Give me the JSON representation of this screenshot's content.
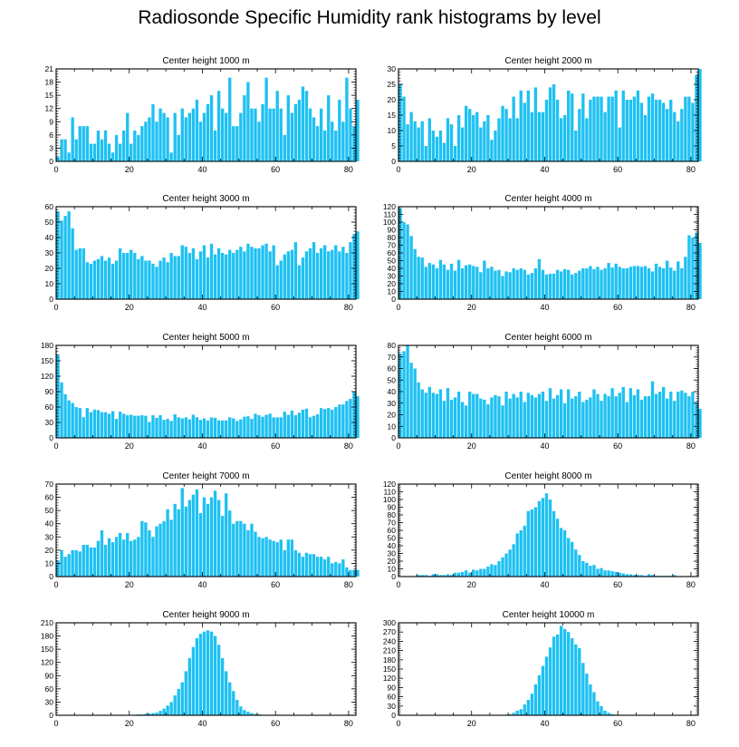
{
  "title": "Radiosonde Specific Humidity rank histograms by level",
  "colors": {
    "bar": "#1ec1f2",
    "axis": "#000000"
  },
  "chart_data": [
    {
      "type": "bar",
      "title": "Center height 1000 m",
      "xlim": [
        0,
        82
      ],
      "ylim": [
        0,
        21
      ],
      "xticks": [
        0,
        20,
        40,
        60,
        80
      ],
      "yticks": [
        0,
        3,
        6,
        9,
        12,
        15,
        18,
        21
      ],
      "values": [
        1,
        5,
        5,
        2,
        10,
        5,
        8,
        8,
        8,
        4,
        4,
        7,
        5,
        7,
        4,
        2,
        6,
        4,
        7,
        11,
        4,
        7,
        6,
        8,
        9,
        10,
        13,
        9,
        12,
        11,
        10,
        2,
        11,
        6,
        12,
        10,
        11,
        12,
        14,
        9,
        11,
        13,
        15,
        7,
        16,
        12,
        11,
        19,
        8,
        8,
        11,
        15,
        18,
        12,
        12,
        9,
        13,
        19,
        12,
        12,
        16,
        12,
        6,
        15,
        11,
        13,
        14,
        17,
        16,
        12,
        10,
        8,
        12,
        7,
        15,
        9,
        7,
        14,
        9,
        19,
        12,
        8,
        14
      ]
    },
    {
      "type": "bar",
      "title": "Center height 2000 m",
      "xlim": [
        0,
        82
      ],
      "ylim": [
        0,
        30
      ],
      "xticks": [
        0,
        20,
        40,
        60,
        80
      ],
      "yticks": [
        0,
        5,
        10,
        15,
        20,
        25,
        30
      ],
      "values": [
        25,
        21,
        12,
        16,
        13,
        11,
        13,
        5,
        14,
        10,
        8,
        10,
        6,
        14,
        12,
        5,
        15,
        11,
        18,
        17,
        15,
        16,
        11,
        13,
        15,
        7,
        10,
        14,
        18,
        17,
        14,
        21,
        14,
        23,
        19,
        23,
        16,
        24,
        16,
        16,
        20,
        24,
        25,
        20,
        14,
        15,
        23,
        22,
        10,
        17,
        22,
        14,
        20,
        21,
        21,
        21,
        16,
        21,
        21,
        23,
        11,
        23,
        20,
        20,
        21,
        23,
        19,
        15,
        21,
        22,
        20,
        20,
        19,
        17,
        20,
        16,
        13,
        17,
        21,
        21,
        19,
        28,
        30
      ]
    },
    {
      "type": "bar",
      "title": "Center height 3000 m",
      "xlim": [
        0,
        82
      ],
      "ylim": [
        0,
        60
      ],
      "xticks": [
        0,
        20,
        40,
        60,
        80
      ],
      "yticks": [
        0,
        10,
        20,
        30,
        40,
        50,
        60
      ],
      "values": [
        57,
        51,
        54,
        57,
        46,
        32,
        33,
        33,
        24,
        23,
        25,
        26,
        28,
        25,
        27,
        23,
        25,
        33,
        30,
        30,
        32,
        30,
        26,
        28,
        25,
        25,
        23,
        21,
        25,
        27,
        24,
        30,
        28,
        28,
        35,
        34,
        30,
        33,
        26,
        31,
        35,
        27,
        36,
        29,
        33,
        30,
        29,
        32,
        30,
        32,
        34,
        31,
        36,
        34,
        33,
        33,
        35,
        36,
        31,
        35,
        22,
        25,
        29,
        31,
        32,
        37,
        22,
        27,
        31,
        33,
        37,
        30,
        33,
        35,
        31,
        32,
        35,
        31,
        34,
        30,
        37,
        42,
        44
      ]
    },
    {
      "type": "bar",
      "title": "Center height 4000 m",
      "xlim": [
        0,
        82
      ],
      "ylim": [
        0,
        120
      ],
      "xticks": [
        0,
        20,
        40,
        60,
        80
      ],
      "yticks": [
        0,
        10,
        20,
        30,
        40,
        50,
        60,
        70,
        80,
        90,
        100,
        110,
        120
      ],
      "values": [
        118,
        100,
        97,
        82,
        65,
        55,
        54,
        42,
        47,
        45,
        40,
        51,
        45,
        38,
        46,
        37,
        51,
        40,
        44,
        45,
        43,
        42,
        35,
        50,
        40,
        42,
        37,
        38,
        30,
        36,
        35,
        40,
        38,
        40,
        38,
        32,
        34,
        40,
        52,
        38,
        32,
        33,
        33,
        38,
        36,
        39,
        38,
        32,
        34,
        37,
        40,
        40,
        43,
        39,
        42,
        38,
        40,
        47,
        41,
        46,
        42,
        40,
        40,
        42,
        43,
        43,
        42,
        43,
        40,
        36,
        46,
        42,
        40,
        50,
        41,
        37,
        49,
        40,
        55,
        83,
        80,
        86,
        73
      ]
    },
    {
      "type": "bar",
      "title": "Center height 5000 m",
      "xlim": [
        0,
        82
      ],
      "ylim": [
        0,
        180
      ],
      "xticks": [
        0,
        20,
        40,
        60,
        80
      ],
      "yticks": [
        0,
        30,
        60,
        90,
        120,
        150,
        180
      ],
      "values": [
        162,
        108,
        85,
        73,
        68,
        60,
        58,
        40,
        58,
        50,
        55,
        54,
        50,
        50,
        47,
        52,
        37,
        51,
        47,
        44,
        45,
        43,
        43,
        44,
        43,
        31,
        44,
        39,
        44,
        35,
        37,
        33,
        46,
        40,
        38,
        40,
        36,
        45,
        40,
        35,
        38,
        34,
        40,
        39,
        34,
        34,
        34,
        40,
        38,
        33,
        36,
        41,
        42,
        37,
        47,
        44,
        41,
        45,
        47,
        40,
        40,
        40,
        51,
        45,
        53,
        44,
        49,
        55,
        57,
        40,
        43,
        46,
        58,
        56,
        58,
        55,
        60,
        65,
        65,
        72,
        76,
        90,
        81
      ]
    },
    {
      "type": "bar",
      "title": "Center height 6000 m",
      "xlim": [
        0,
        82
      ],
      "ylim": [
        0,
        80
      ],
      "xticks": [
        0,
        20,
        40,
        60,
        80
      ],
      "yticks": [
        0,
        10,
        20,
        30,
        40,
        50,
        60,
        70,
        80
      ],
      "values": [
        73,
        75,
        80,
        65,
        60,
        48,
        42,
        39,
        44,
        39,
        38,
        42,
        32,
        43,
        33,
        35,
        40,
        31,
        28,
        40,
        38,
        38,
        34,
        33,
        29,
        35,
        37,
        36,
        28,
        40,
        34,
        38,
        35,
        40,
        31,
        39,
        37,
        35,
        38,
        40,
        32,
        43,
        34,
        37,
        42,
        30,
        42,
        34,
        36,
        40,
        31,
        33,
        35,
        42,
        38,
        32,
        38,
        36,
        43,
        36,
        39,
        44,
        31,
        43,
        37,
        42,
        33,
        36,
        36,
        49,
        38,
        40,
        44,
        34,
        40,
        32,
        40,
        41,
        39,
        36,
        40,
        31,
        25
      ]
    },
    {
      "type": "bar",
      "title": "Center height 7000 m",
      "xlim": [
        0,
        82
      ],
      "ylim": [
        0,
        70
      ],
      "xticks": [
        0,
        20,
        40,
        60,
        80
      ],
      "yticks": [
        0,
        10,
        20,
        30,
        40,
        50,
        60,
        70
      ],
      "values": [
        12,
        20,
        15,
        17,
        20,
        20,
        19,
        24,
        24,
        22,
        22,
        27,
        35,
        24,
        29,
        26,
        30,
        33,
        28,
        33,
        27,
        28,
        30,
        42,
        41,
        35,
        30,
        38,
        40,
        42,
        51,
        43,
        55,
        51,
        67,
        53,
        58,
        62,
        66,
        48,
        60,
        55,
        60,
        65,
        58,
        46,
        63,
        50,
        40,
        42,
        42,
        40,
        35,
        40,
        34,
        30,
        29,
        30,
        28,
        27,
        26,
        28,
        20,
        28,
        28,
        20,
        18,
        15,
        18,
        17,
        17,
        15,
        15,
        13,
        15,
        10,
        11,
        10,
        13,
        7,
        5,
        5,
        5
      ]
    },
    {
      "type": "bar",
      "title": "Center height 8000 m",
      "xlim": [
        0,
        82
      ],
      "ylim": [
        0,
        120
      ],
      "xticks": [
        0,
        20,
        40,
        60,
        80
      ],
      "yticks": [
        0,
        10,
        20,
        30,
        40,
        50,
        60,
        70,
        80,
        90,
        100,
        110,
        120
      ],
      "values": [
        0,
        0,
        0,
        0,
        0,
        2,
        2,
        2,
        1,
        3,
        3,
        2,
        2,
        3,
        2,
        5,
        5,
        6,
        8,
        5,
        9,
        8,
        10,
        10,
        13,
        16,
        15,
        20,
        25,
        30,
        35,
        42,
        56,
        60,
        66,
        85,
        87,
        90,
        98,
        102,
        108,
        100,
        85,
        75,
        63,
        60,
        50,
        45,
        35,
        28,
        20,
        18,
        14,
        15,
        10,
        11,
        8,
        8,
        7,
        6,
        5,
        4,
        3,
        3,
        2,
        2,
        2,
        1,
        3,
        2,
        1,
        1,
        1,
        1,
        1,
        2,
        0,
        0,
        0,
        0,
        0,
        0,
        0
      ]
    },
    {
      "type": "bar",
      "title": "Center height 9000 m",
      "xlim": [
        0,
        82
      ],
      "ylim": [
        0,
        210
      ],
      "xticks": [
        0,
        20,
        40,
        60,
        80
      ],
      "yticks": [
        0,
        30,
        60,
        90,
        120,
        150,
        180,
        210
      ],
      "values": [
        0,
        0,
        0,
        0,
        0,
        0,
        0,
        0,
        0,
        0,
        0,
        0,
        0,
        0,
        0,
        0,
        0,
        0,
        0,
        0,
        0,
        0,
        2,
        2,
        3,
        4,
        5,
        6,
        10,
        15,
        22,
        30,
        45,
        60,
        75,
        100,
        130,
        155,
        175,
        185,
        190,
        193,
        190,
        180,
        160,
        130,
        100,
        75,
        55,
        35,
        20,
        12,
        8,
        5,
        3,
        2,
        1,
        1,
        0,
        0,
        0,
        0,
        0,
        0,
        0,
        0,
        0,
        0,
        0,
        0,
        0,
        0,
        0,
        0,
        0,
        0,
        0,
        0,
        0,
        0,
        0,
        0,
        0
      ]
    },
    {
      "type": "bar",
      "title": "Center height 10000 m",
      "xlim": [
        0,
        82
      ],
      "ylim": [
        0,
        300
      ],
      "xticks": [
        0,
        20,
        40,
        60,
        80
      ],
      "yticks": [
        0,
        30,
        60,
        90,
        120,
        150,
        180,
        210,
        240,
        270,
        300
      ],
      "values": [
        0,
        0,
        0,
        0,
        0,
        0,
        0,
        0,
        0,
        0,
        0,
        0,
        0,
        0,
        0,
        0,
        0,
        0,
        0,
        0,
        0,
        0,
        0,
        0,
        0,
        0,
        0,
        0,
        1,
        2,
        3,
        8,
        15,
        20,
        35,
        50,
        70,
        100,
        130,
        160,
        190,
        220,
        255,
        262,
        290,
        280,
        270,
        250,
        230,
        218,
        170,
        135,
        100,
        75,
        45,
        30,
        15,
        8,
        4,
        2,
        1,
        0,
        0,
        0,
        0,
        0,
        0,
        0,
        0,
        0,
        0,
        0,
        0,
        0,
        0,
        0,
        0,
        0,
        0,
        0,
        0,
        0,
        0
      ]
    }
  ]
}
